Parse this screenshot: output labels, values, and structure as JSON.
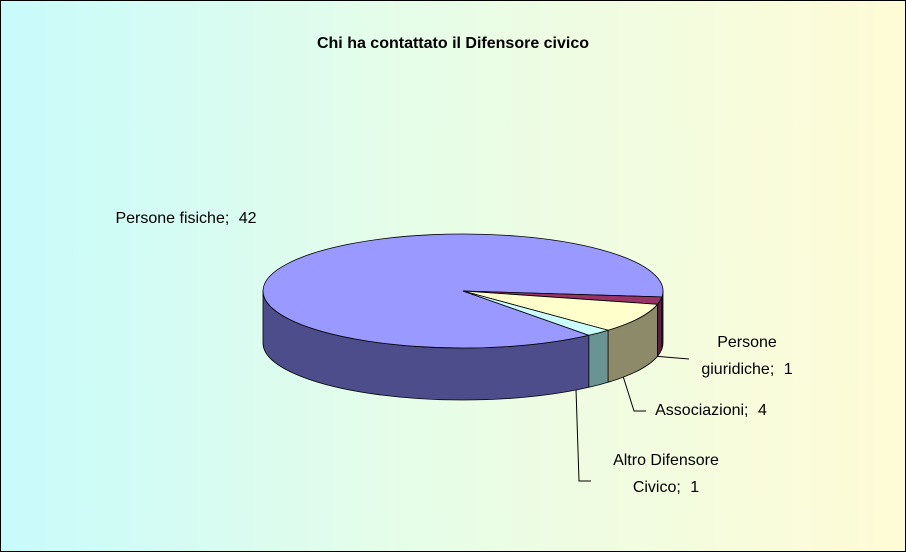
{
  "chart_data": {
    "type": "pie3d",
    "title": "Chi  ha contattato il Difensore civico",
    "categories": [
      "Persone fisiche;",
      "Persone giuridiche;",
      "Associazioni;",
      "Altro Difensore Civico;"
    ],
    "values": [
      42,
      1,
      4,
      1
    ],
    "colors": [
      "#9999ff",
      "#993366",
      "#ffffcc",
      "#ccffff"
    ],
    "side_colors": [
      "#4d4d8c",
      "#5c1f3d",
      "#8c8a68",
      "#6a9494"
    ]
  }
}
